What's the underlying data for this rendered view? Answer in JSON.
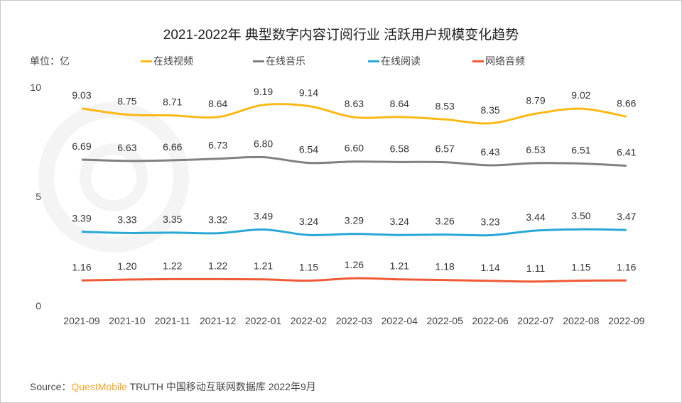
{
  "chart_data": {
    "type": "line",
    "title": "2021-2022年 典型数字内容订阅行业 活跃用户规模变化趋势",
    "unit_label": "单位：亿",
    "categories": [
      "2021-09",
      "2021-10",
      "2021-11",
      "2021-12",
      "2022-01",
      "2022-02",
      "2022-03",
      "2022-04",
      "2022-05",
      "2022-06",
      "2022-07",
      "2022-08",
      "2022-09"
    ],
    "ylim": [
      0,
      10
    ],
    "yticks": [
      "0",
      "5",
      "10"
    ],
    "grid": false,
    "legend_position": "top",
    "series": [
      {
        "name": "在线视频",
        "color": "#fbb917",
        "values": [
          9.03,
          8.75,
          8.71,
          8.64,
          9.19,
          9.14,
          8.63,
          8.64,
          8.53,
          8.35,
          8.79,
          9.02,
          8.66
        ]
      },
      {
        "name": "在线音乐",
        "color": "#808080",
        "values": [
          6.69,
          6.63,
          6.66,
          6.73,
          6.8,
          6.54,
          6.6,
          6.58,
          6.57,
          6.43,
          6.53,
          6.51,
          6.41
        ]
      },
      {
        "name": "在线阅读",
        "color": "#2aa7d6",
        "values": [
          3.39,
          3.33,
          3.35,
          3.32,
          3.49,
          3.24,
          3.29,
          3.24,
          3.26,
          3.23,
          3.44,
          3.5,
          3.47
        ]
      },
      {
        "name": "网络音频",
        "color": "#ee5a35",
        "values": [
          1.16,
          1.2,
          1.22,
          1.22,
          1.21,
          1.15,
          1.26,
          1.21,
          1.18,
          1.14,
          1.11,
          1.15,
          1.16
        ]
      }
    ]
  },
  "watermark": "QUEST MOBILE",
  "source": {
    "prefix": "Source：",
    "brand": "QuestMobile",
    "text": "TRUTH 中国移动互联网数据库 2022年9月"
  }
}
